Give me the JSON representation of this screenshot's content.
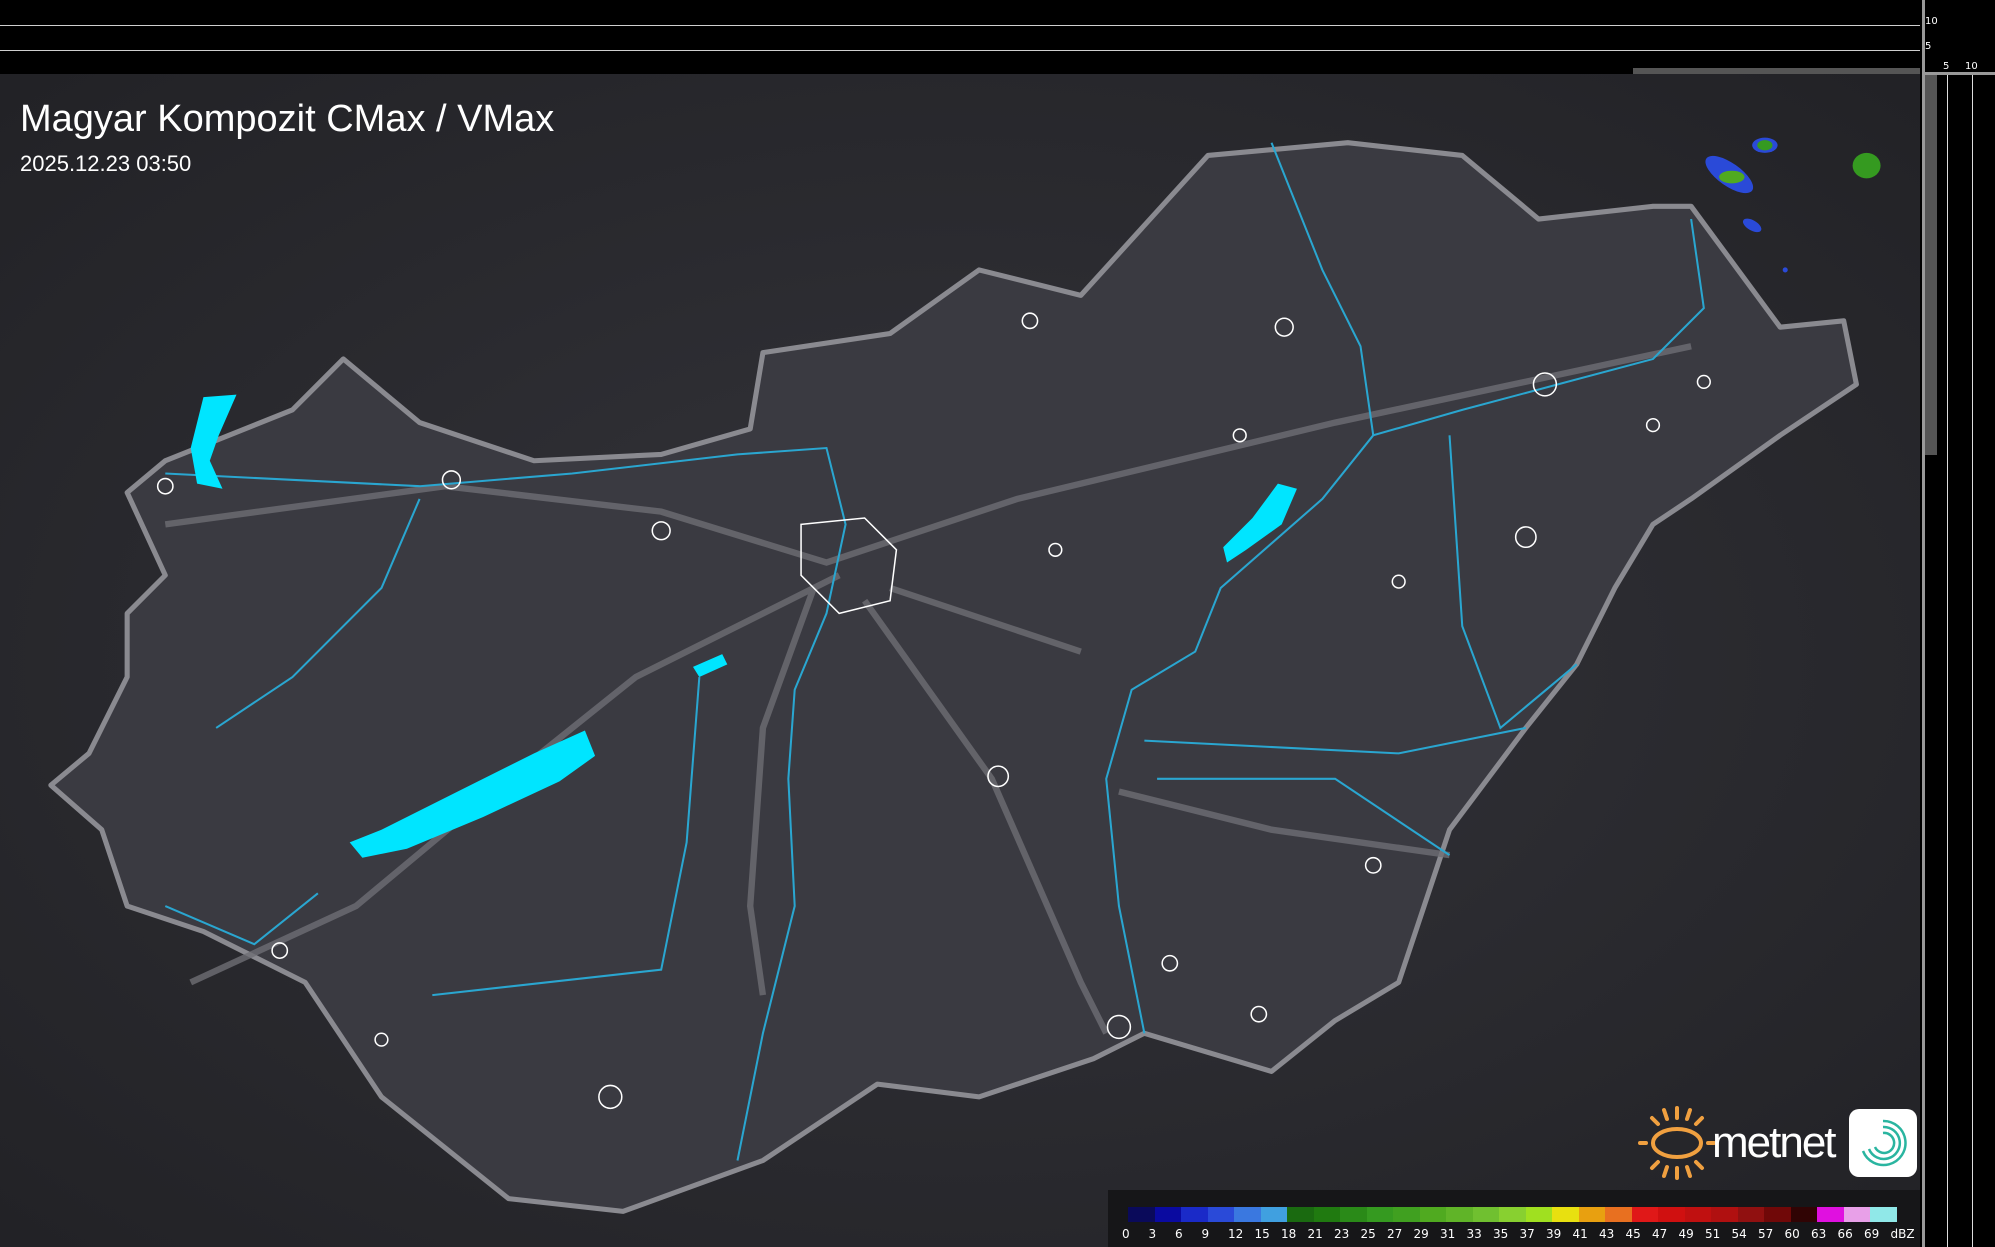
{
  "header": {
    "title": "Magyar Kompozit CMax / VMax",
    "datetime": "2025.12.23 03:50"
  },
  "axes": {
    "vertical_ticks": [
      "10",
      "5"
    ],
    "horizontal_ticks": [
      "5",
      "10"
    ]
  },
  "legend": {
    "unit": "dBZ",
    "labels": [
      "0",
      "3",
      "6",
      "9",
      "12",
      "15",
      "18",
      "21",
      "23",
      "25",
      "27",
      "29",
      "31",
      "33",
      "35",
      "37",
      "39",
      "41",
      "43",
      "45",
      "47",
      "49",
      "51",
      "54",
      "57",
      "60",
      "63",
      "66",
      "69"
    ],
    "colors": [
      "#0a0a5a",
      "#0a0aa0",
      "#1a2ac8",
      "#2a4ad8",
      "#3a78e0",
      "#40a0e0",
      "#1a6a10",
      "#207a10",
      "#2a8a18",
      "#359a20",
      "#40a020",
      "#50aa20",
      "#60b428",
      "#70c030",
      "#88d030",
      "#a0e020",
      "#e8e010",
      "#e8a010",
      "#e87020",
      "#e01818",
      "#d01010",
      "#c01010",
      "#b01010",
      "#901010",
      "#700808",
      "#300404",
      "#e010e0",
      "#e8a0e8",
      "#90e8e8"
    ]
  },
  "logo": {
    "text": "metnet"
  },
  "colors": {
    "water": "#00e5ff",
    "river": "#2aa6d0",
    "border": "#8a8a90",
    "land": "#3a3a40",
    "background": "#2a2a2e"
  }
}
